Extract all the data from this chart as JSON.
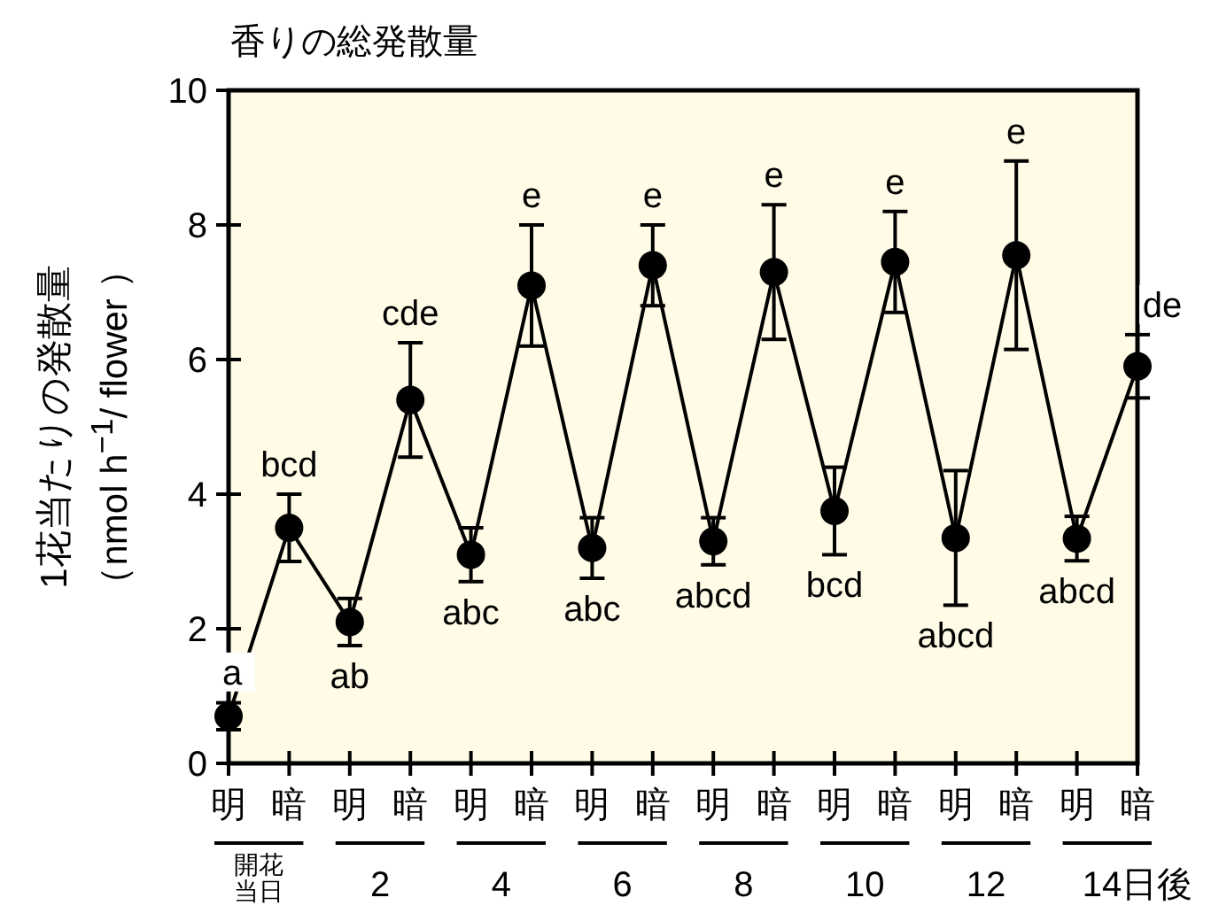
{
  "chart_data": {
    "type": "line",
    "title": "香りの総発散量",
    "ylabel": "1花当たりの発散量（nmol h$^{−1}$/ flower ）",
    "categories": [
      "明",
      "暗",
      "明",
      "暗",
      "明",
      "暗",
      "明",
      "暗",
      "明",
      "暗",
      "明",
      "暗",
      "明",
      "暗",
      "明",
      "暗"
    ],
    "series": [
      {
        "color": "#000000",
        "values": [
          0.7,
          3.5,
          2.1,
          5.4,
          3.1,
          7.1,
          3.2,
          7.4,
          3.3,
          7.3,
          3.75,
          7.45,
          3.35,
          7.55,
          3.34,
          5.9
        ],
        "errors": [
          0.2,
          0.5,
          0.35,
          0.85,
          0.4,
          0.9,
          0.45,
          0.6,
          0.35,
          1.0,
          0.65,
          0.75,
          1.0,
          1.4,
          0.33,
          0.47
        ],
        "value_labels": [
          "a",
          "bcd",
          "ab",
          "cde",
          "abc",
          "e",
          "abc",
          "e",
          "abcd",
          "e",
          "bcd",
          "e",
          "abcd",
          "e",
          "abcd",
          "de"
        ]
      }
    ],
    "annotations": [
      "開花当日",
      "2",
      "4",
      "6",
      "8",
      "10",
      "12",
      "14日後"
    ],
    "ylim": [
      0,
      10
    ],
    "yticks": [
      0,
      2,
      4,
      6,
      8,
      10
    ],
    "marker": "circle",
    "line_style": "solid"
  }
}
